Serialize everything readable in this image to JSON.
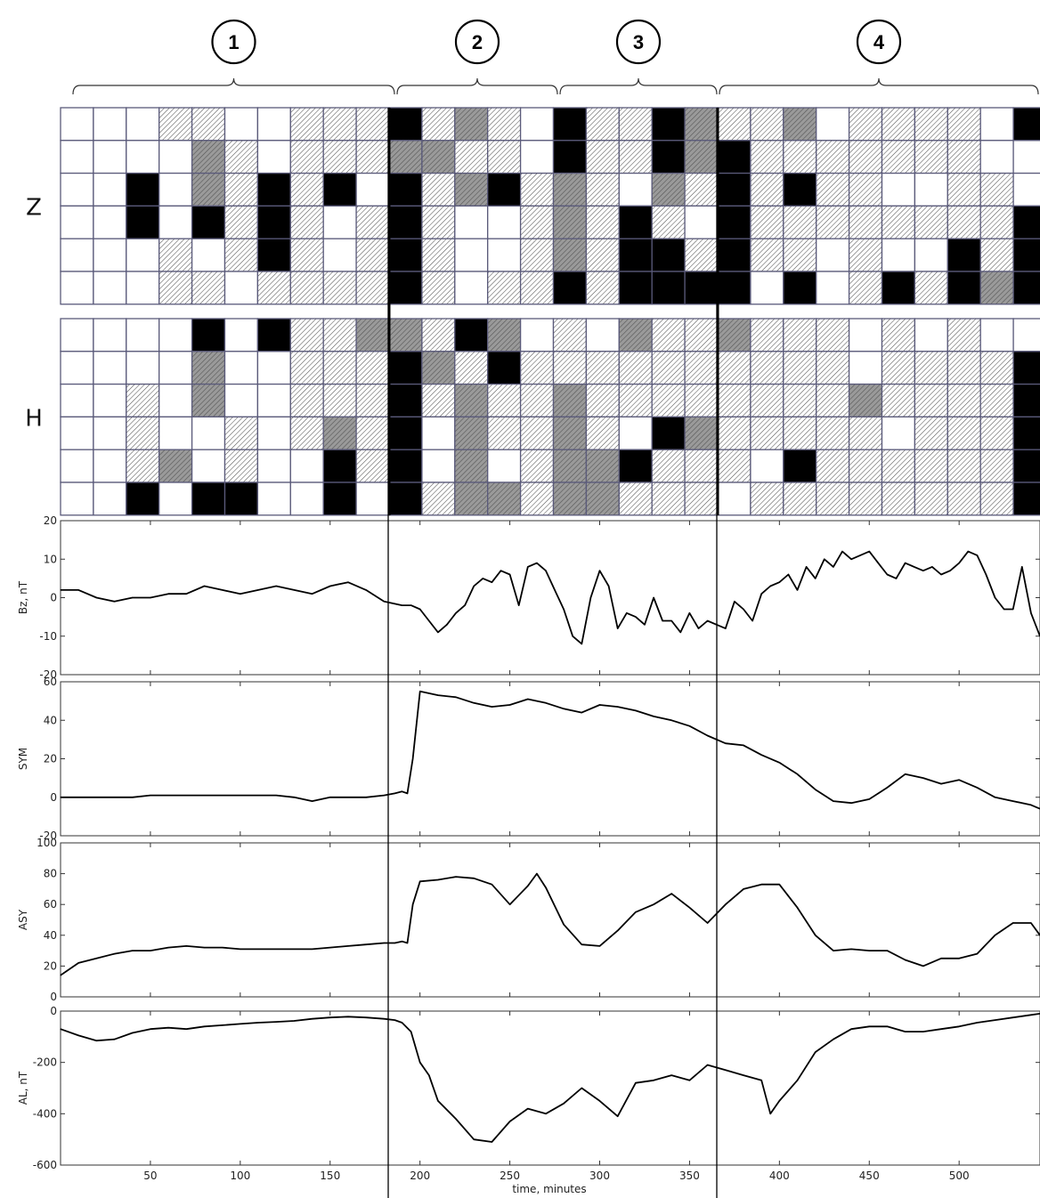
{
  "periods": [
    {
      "label": "1",
      "start_min": 0,
      "end_min": 182
    },
    {
      "label": "2",
      "start_min": 182,
      "end_min": 272
    },
    {
      "label": "3",
      "start_min": 272,
      "end_min": 362
    },
    {
      "label": "4",
      "start_min": 362,
      "end_min": 545
    }
  ],
  "grid_legend": {
    "0": "white",
    "1": "hatched",
    "2": "gray",
    "3": "black"
  },
  "grids": [
    {
      "label": "Z",
      "rows": [
        [
          0,
          0,
          0,
          1,
          1,
          0,
          0,
          1,
          1,
          1,
          3,
          1,
          2,
          1,
          0,
          3,
          1,
          1,
          3,
          2,
          1,
          1,
          2,
          0,
          1,
          1,
          1,
          1,
          0,
          3
        ],
        [
          0,
          0,
          0,
          0,
          2,
          1,
          0,
          1,
          1,
          1,
          2,
          2,
          1,
          1,
          0,
          3,
          1,
          1,
          3,
          2,
          3,
          1,
          1,
          1,
          1,
          1,
          1,
          1,
          0,
          0
        ],
        [
          0,
          0,
          3,
          0,
          2,
          1,
          3,
          1,
          3,
          0,
          3,
          1,
          2,
          3,
          1,
          2,
          1,
          0,
          2,
          1,
          3,
          1,
          3,
          1,
          1,
          0,
          0,
          1,
          1,
          0
        ],
        [
          0,
          0,
          3,
          0,
          3,
          1,
          3,
          1,
          0,
          1,
          3,
          1,
          0,
          0,
          1,
          2,
          1,
          3,
          1,
          0,
          3,
          1,
          1,
          1,
          1,
          1,
          1,
          1,
          1,
          3
        ],
        [
          0,
          0,
          0,
          1,
          0,
          1,
          3,
          1,
          0,
          1,
          3,
          1,
          0,
          0,
          1,
          2,
          1,
          3,
          3,
          1,
          3,
          1,
          1,
          0,
          1,
          0,
          0,
          3,
          1,
          3
        ],
        [
          0,
          0,
          0,
          1,
          1,
          0,
          1,
          1,
          1,
          1,
          3,
          1,
          0,
          1,
          1,
          3,
          1,
          3,
          3,
          3,
          3,
          0,
          3,
          0,
          1,
          3,
          1,
          3,
          2,
          3
        ]
      ]
    },
    {
      "label": "H",
      "rows": [
        [
          0,
          0,
          0,
          0,
          3,
          0,
          3,
          1,
          1,
          2,
          2,
          1,
          3,
          2,
          0,
          1,
          0,
          2,
          1,
          1,
          2,
          1,
          1,
          1,
          0,
          1,
          0,
          1,
          0,
          0
        ],
        [
          0,
          0,
          0,
          0,
          2,
          0,
          0,
          1,
          1,
          1,
          3,
          2,
          1,
          3,
          1,
          1,
          1,
          1,
          1,
          1,
          1,
          1,
          1,
          1,
          0,
          1,
          1,
          1,
          1,
          3
        ],
        [
          0,
          0,
          1,
          0,
          2,
          0,
          0,
          1,
          1,
          1,
          3,
          1,
          2,
          1,
          1,
          2,
          1,
          1,
          1,
          1,
          1,
          1,
          1,
          1,
          2,
          1,
          1,
          1,
          1,
          3
        ],
        [
          0,
          0,
          1,
          0,
          0,
          1,
          0,
          1,
          2,
          1,
          3,
          0,
          2,
          1,
          1,
          2,
          1,
          0,
          3,
          2,
          1,
          1,
          1,
          1,
          1,
          0,
          1,
          1,
          1,
          3
        ],
        [
          0,
          0,
          1,
          2,
          0,
          1,
          0,
          0,
          3,
          1,
          3,
          0,
          2,
          0,
          1,
          2,
          2,
          3,
          1,
          1,
          1,
          0,
          3,
          1,
          1,
          1,
          1,
          1,
          1,
          3
        ],
        [
          0,
          0,
          3,
          0,
          3,
          3,
          0,
          0,
          3,
          0,
          3,
          1,
          2,
          2,
          1,
          2,
          2,
          1,
          1,
          1,
          0,
          1,
          1,
          1,
          1,
          1,
          1,
          1,
          1,
          3
        ]
      ]
    }
  ],
  "chart_data": [
    {
      "type": "line",
      "ylabel": "Bz, nT",
      "ylim": [
        -20,
        20
      ],
      "yticks": [
        -20,
        -10,
        0,
        10,
        20
      ],
      "xlim": [
        0,
        545
      ],
      "xticks": [
        50,
        100,
        150,
        200,
        250,
        300,
        350,
        400,
        450,
        500
      ],
      "series": [
        {
          "x": [
            0,
            10,
            20,
            30,
            40,
            50,
            60,
            70,
            80,
            90,
            100,
            110,
            120,
            130,
            140,
            150,
            160,
            170,
            180,
            190,
            195,
            200,
            205,
            210,
            215,
            220,
            225,
            230,
            235,
            240,
            245,
            250,
            255,
            260,
            265,
            270,
            275,
            280,
            285,
            290,
            295,
            300,
            305,
            310,
            315,
            320,
            325,
            330,
            335,
            340,
            345,
            350,
            355,
            360,
            365,
            370,
            375,
            380,
            385,
            390,
            395,
            400,
            405,
            410,
            415,
            420,
            425,
            430,
            435,
            440,
            445,
            450,
            455,
            460,
            465,
            470,
            475,
            480,
            485,
            490,
            495,
            500,
            505,
            510,
            515,
            520,
            525,
            530,
            535,
            540,
            545
          ],
          "y": [
            2,
            2,
            0,
            -1,
            0,
            0,
            1,
            1,
            3,
            2,
            1,
            2,
            3,
            2,
            1,
            3,
            4,
            2,
            -1,
            -2,
            -2,
            -3,
            -6,
            -9,
            -7,
            -4,
            -2,
            3,
            5,
            4,
            7,
            6,
            -2,
            8,
            9,
            7,
            2,
            -3,
            -10,
            -12,
            0,
            7,
            3,
            -8,
            -4,
            -5,
            -7,
            0,
            -6,
            -6,
            -9,
            -4,
            -8,
            -6,
            -7,
            -8,
            -1,
            -3,
            -6,
            1,
            3,
            4,
            6,
            2,
            8,
            5,
            10,
            8,
            12,
            10,
            11,
            12,
            9,
            6,
            5,
            9,
            8,
            7,
            8,
            6,
            7,
            9,
            12,
            11,
            6,
            0,
            -3,
            -3,
            8,
            -4,
            -10
          ]
        }
      ]
    },
    {
      "type": "line",
      "ylabel": "SYM",
      "ylim": [
        -20,
        60
      ],
      "yticks": [
        -20,
        0,
        20,
        40,
        60
      ],
      "xlim": [
        0,
        545
      ],
      "series": [
        {
          "x": [
            0,
            10,
            20,
            30,
            40,
            50,
            60,
            70,
            80,
            90,
            100,
            110,
            120,
            130,
            140,
            150,
            160,
            170,
            180,
            186,
            190,
            193,
            196,
            200,
            210,
            220,
            230,
            240,
            250,
            260,
            270,
            280,
            290,
            300,
            310,
            320,
            330,
            340,
            350,
            360,
            370,
            380,
            390,
            400,
            410,
            420,
            430,
            440,
            450,
            460,
            470,
            480,
            490,
            500,
            510,
            520,
            530,
            540,
            545
          ],
          "y": [
            0,
            0,
            0,
            0,
            0,
            1,
            1,
            1,
            1,
            1,
            1,
            1,
            1,
            0,
            -2,
            0,
            0,
            0,
            1,
            2,
            3,
            2,
            20,
            55,
            53,
            52,
            49,
            47,
            48,
            51,
            49,
            46,
            44,
            48,
            47,
            45,
            42,
            40,
            37,
            32,
            28,
            27,
            22,
            18,
            12,
            4,
            -2,
            -3,
            -1,
            5,
            12,
            10,
            7,
            9,
            5,
            0,
            -2,
            -4,
            -6
          ]
        }
      ]
    },
    {
      "type": "line",
      "ylabel": "ASY",
      "ylim": [
        0,
        100
      ],
      "yticks": [
        0,
        20,
        40,
        60,
        80,
        100
      ],
      "xlim": [
        0,
        545
      ],
      "series": [
        {
          "x": [
            0,
            10,
            20,
            30,
            40,
            50,
            60,
            70,
            80,
            90,
            100,
            110,
            120,
            130,
            140,
            150,
            160,
            170,
            180,
            186,
            190,
            193,
            196,
            200,
            210,
            220,
            230,
            240,
            250,
            260,
            265,
            270,
            280,
            290,
            300,
            310,
            320,
            330,
            340,
            350,
            360,
            370,
            380,
            390,
            400,
            410,
            420,
            430,
            440,
            450,
            460,
            470,
            480,
            490,
            500,
            510,
            520,
            530,
            540,
            545
          ],
          "y": [
            14,
            22,
            25,
            28,
            30,
            30,
            32,
            33,
            32,
            32,
            31,
            31,
            31,
            31,
            31,
            32,
            33,
            34,
            35,
            35,
            36,
            35,
            60,
            75,
            76,
            78,
            77,
            73,
            60,
            72,
            80,
            71,
            47,
            34,
            33,
            43,
            55,
            60,
            67,
            58,
            48,
            60,
            70,
            73,
            73,
            58,
            40,
            30,
            31,
            30,
            30,
            24,
            20,
            25,
            25,
            28,
            40,
            48,
            48,
            40
          ]
        }
      ]
    },
    {
      "type": "line",
      "ylabel": "AL, nT",
      "xlabel": "time, minutes",
      "ylim": [
        -600,
        0
      ],
      "yticks": [
        -600,
        -400,
        -200,
        0
      ],
      "xlim": [
        0,
        545
      ],
      "xticks": [
        50,
        100,
        150,
        200,
        250,
        300,
        350,
        400,
        450,
        500
      ],
      "series": [
        {
          "x": [
            0,
            10,
            20,
            30,
            40,
            50,
            60,
            70,
            80,
            90,
            100,
            110,
            120,
            130,
            140,
            150,
            160,
            170,
            180,
            186,
            190,
            195,
            200,
            205,
            210,
            220,
            230,
            240,
            250,
            260,
            270,
            280,
            290,
            300,
            310,
            320,
            330,
            340,
            350,
            360,
            370,
            380,
            390,
            395,
            400,
            410,
            420,
            430,
            440,
            450,
            460,
            470,
            480,
            490,
            500,
            510,
            520,
            530,
            540,
            545
          ],
          "y": [
            -70,
            -95,
            -115,
            -110,
            -85,
            -70,
            -65,
            -70,
            -60,
            -55,
            -50,
            -45,
            -42,
            -38,
            -30,
            -25,
            -22,
            -25,
            -30,
            -35,
            -45,
            -80,
            -200,
            -250,
            -350,
            -420,
            -500,
            -510,
            -430,
            -380,
            -400,
            -360,
            -300,
            -350,
            -410,
            -280,
            -270,
            -250,
            -270,
            -210,
            -230,
            -250,
            -270,
            -400,
            -350,
            -270,
            -160,
            -110,
            -70,
            -60,
            -60,
            -80,
            -80,
            -70,
            -60,
            -45,
            -35,
            -25,
            -15,
            -10
          ]
        }
      ]
    }
  ]
}
